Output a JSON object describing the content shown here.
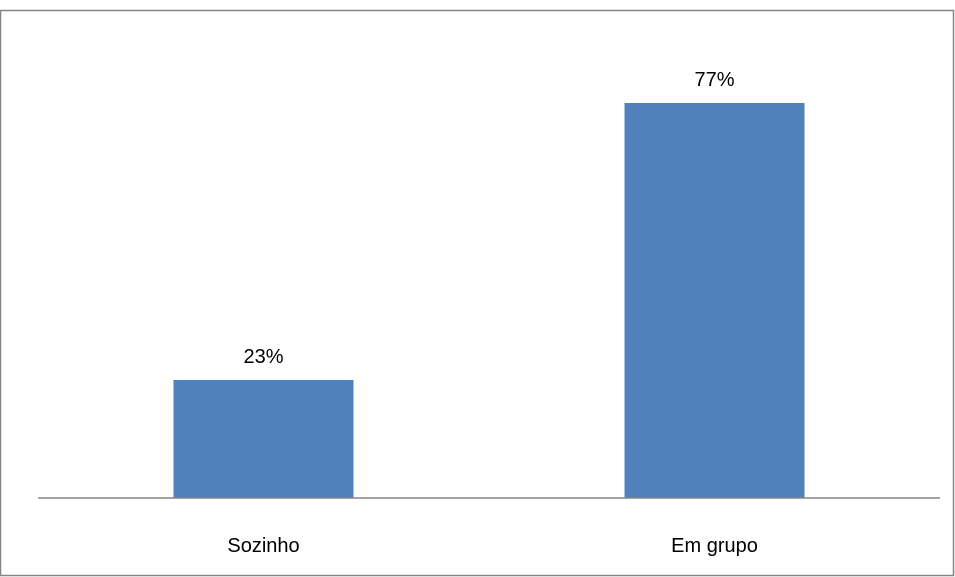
{
  "chart_data": {
    "type": "bar",
    "categories": [
      "Sozinho",
      "Em grupo"
    ],
    "values": [
      23,
      77
    ],
    "data_labels": [
      "23%",
      "77%"
    ],
    "title": "",
    "xlabel": "",
    "ylabel": "",
    "ylim": [
      0,
      80
    ],
    "grid": false,
    "legend": "none",
    "bar_color": "#4f81bd",
    "axis_color": "#868686",
    "border_color": "#868686"
  }
}
